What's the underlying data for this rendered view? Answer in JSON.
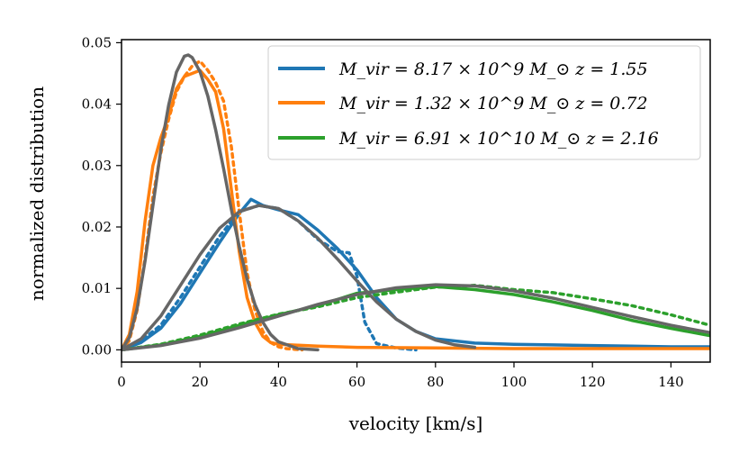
{
  "chart_data": {
    "type": "line",
    "xlabel": "velocity [km/s]",
    "ylabel": "normalized distribution",
    "xlim": [
      0,
      150
    ],
    "ylim": [
      -0.002,
      0.0505
    ],
    "xticks": [
      0,
      20,
      40,
      60,
      80,
      100,
      120,
      140
    ],
    "yticks": [
      0.0,
      0.01,
      0.02,
      0.03,
      0.04,
      0.05
    ],
    "xtick_labels": [
      "0",
      "20",
      "40",
      "60",
      "80",
      "100",
      "120",
      "140"
    ],
    "ytick_labels": [
      "0.00",
      "0.01",
      "0.02",
      "0.03",
      "0.04",
      "0.05"
    ],
    "grid": false,
    "legend_position": "top-right",
    "colors": {
      "blue": "#1f77b4",
      "orange": "#ff7f0e",
      "green": "#2ca02c",
      "fit": "#666666"
    },
    "legend": [
      {
        "label": "M_vir = 8.17 × 10^9 M_⊙  z = 1.55",
        "color": "#1f77b4"
      },
      {
        "label": "M_vir = 1.32 × 10^9 M_⊙  z = 0.72",
        "color": "#ff7f0e"
      },
      {
        "label": "M_vir = 6.91 × 10^10 M_⊙  z = 2.16",
        "color": "#2ca02c"
      }
    ],
    "series": [
      {
        "name": "M_vir = 8.17 × 10^9 M_⊙  z = 1.55",
        "color": "#1f77b4",
        "style": "solid",
        "x": [
          0,
          5,
          10,
          15,
          20,
          25,
          30,
          33,
          36,
          40,
          45,
          50,
          55,
          60,
          65,
          70,
          75,
          80,
          90,
          100,
          110,
          120,
          130,
          140,
          150
        ],
        "y": [
          0.0,
          0.0012,
          0.0035,
          0.0075,
          0.0125,
          0.0175,
          0.0222,
          0.0245,
          0.0235,
          0.0228,
          0.022,
          0.0195,
          0.0165,
          0.013,
          0.0085,
          0.005,
          0.003,
          0.0018,
          0.0011,
          0.0009,
          0.0008,
          0.0007,
          0.0006,
          0.0005,
          0.0005
        ]
      },
      {
        "name": "M_vir = 8.17 × 10^9 M_⊙  z = 1.55",
        "color": "#1f77b4",
        "style": "dotted",
        "x": [
          0,
          5,
          10,
          15,
          20,
          25,
          30,
          35,
          40,
          45,
          50,
          55,
          58,
          60,
          62,
          65,
          70,
          75
        ],
        "y": [
          0.0,
          0.0015,
          0.004,
          0.0085,
          0.0135,
          0.0185,
          0.0225,
          0.0235,
          0.023,
          0.021,
          0.018,
          0.016,
          0.0158,
          0.012,
          0.0045,
          0.001,
          0.0003,
          0.0
        ]
      },
      {
        "name": "M_vir = 1.32 × 10^9 M_⊙  z = 0.72",
        "color": "#ff7f0e",
        "style": "solid",
        "x": [
          0,
          2,
          4,
          6,
          8,
          10,
          12,
          14,
          16,
          18,
          20,
          22,
          24,
          26,
          28,
          30,
          32,
          34,
          36,
          38,
          40,
          50,
          60,
          80,
          100,
          120,
          150
        ],
        "y": [
          0.0,
          0.0025,
          0.0095,
          0.021,
          0.03,
          0.0345,
          0.038,
          0.0425,
          0.0445,
          0.045,
          0.0455,
          0.044,
          0.042,
          0.036,
          0.026,
          0.016,
          0.0085,
          0.0045,
          0.0022,
          0.0012,
          0.0009,
          0.0006,
          0.0004,
          0.0003,
          0.0002,
          0.0002,
          0.0002
        ]
      },
      {
        "name": "M_vir = 1.32 × 10^9 M_⊙  z = 0.72",
        "color": "#ff7f0e",
        "style": "dotted",
        "x": [
          0,
          2,
          4,
          6,
          8,
          10,
          12,
          14,
          16,
          18,
          20,
          22,
          24,
          26,
          28,
          30,
          32,
          34,
          36,
          38,
          40,
          42,
          44,
          46
        ],
        "y": [
          0.0,
          0.0015,
          0.0065,
          0.015,
          0.025,
          0.032,
          0.0375,
          0.042,
          0.0445,
          0.0462,
          0.047,
          0.0455,
          0.0435,
          0.0405,
          0.033,
          0.0225,
          0.0125,
          0.0065,
          0.003,
          0.0012,
          0.0005,
          0.0002,
          0.0001,
          0.0
        ]
      },
      {
        "name": "M_vir = 6.91 × 10^10 M_⊙  z = 2.16",
        "color": "#2ca02c",
        "style": "solid",
        "x": [
          0,
          10,
          20,
          30,
          40,
          50,
          60,
          70,
          80,
          90,
          100,
          110,
          120,
          130,
          140,
          150
        ],
        "y": [
          0.0,
          0.0008,
          0.0022,
          0.004,
          0.0057,
          0.0072,
          0.0092,
          0.0098,
          0.0103,
          0.0098,
          0.009,
          0.0078,
          0.0064,
          0.0048,
          0.0035,
          0.0023
        ]
      },
      {
        "name": "M_vir = 6.91 × 10^10 M_⊙  z = 2.16",
        "color": "#2ca02c",
        "style": "dotted",
        "x": [
          0,
          10,
          20,
          30,
          40,
          50,
          60,
          70,
          80,
          90,
          100,
          110,
          120,
          130,
          140,
          150
        ],
        "y": [
          0.0,
          0.0009,
          0.0024,
          0.0042,
          0.0058,
          0.007,
          0.0085,
          0.0094,
          0.0102,
          0.0105,
          0.0098,
          0.0093,
          0.0083,
          0.0072,
          0.0057,
          0.004
        ]
      },
      {
        "name": "",
        "color": "#666666",
        "style": "solid",
        "x": [
          0,
          2,
          4,
          6,
          8,
          10,
          12,
          14,
          16,
          17,
          18,
          20,
          22,
          24,
          26,
          28,
          30,
          32,
          34,
          36,
          38,
          40,
          45,
          50
        ],
        "y": [
          0.0,
          0.002,
          0.0068,
          0.0145,
          0.0235,
          0.0325,
          0.0398,
          0.0452,
          0.0478,
          0.048,
          0.0476,
          0.0453,
          0.0413,
          0.0358,
          0.0295,
          0.0228,
          0.0168,
          0.0115,
          0.0074,
          0.0045,
          0.0025,
          0.0013,
          0.0002,
          0.0
        ]
      },
      {
        "name": "",
        "color": "#666666",
        "style": "solid",
        "x": [
          0,
          5,
          10,
          15,
          20,
          25,
          30,
          35,
          40,
          45,
          50,
          55,
          60,
          65,
          70,
          75,
          80,
          85,
          90
        ],
        "y": [
          0.0,
          0.0018,
          0.0055,
          0.0105,
          0.0155,
          0.0198,
          0.0225,
          0.0235,
          0.023,
          0.021,
          0.0182,
          0.0148,
          0.0112,
          0.0078,
          0.005,
          0.003,
          0.0016,
          0.0008,
          0.0004
        ]
      },
      {
        "name": "",
        "color": "#666666",
        "style": "solid",
        "x": [
          0,
          10,
          20,
          30,
          40,
          50,
          60,
          70,
          80,
          90,
          100,
          110,
          120,
          130,
          140,
          150
        ],
        "y": [
          0.0,
          0.0007,
          0.0019,
          0.0036,
          0.0055,
          0.0074,
          0.009,
          0.0101,
          0.0106,
          0.0104,
          0.0096,
          0.0084,
          0.0069,
          0.0054,
          0.004,
          0.0028
        ]
      }
    ]
  }
}
